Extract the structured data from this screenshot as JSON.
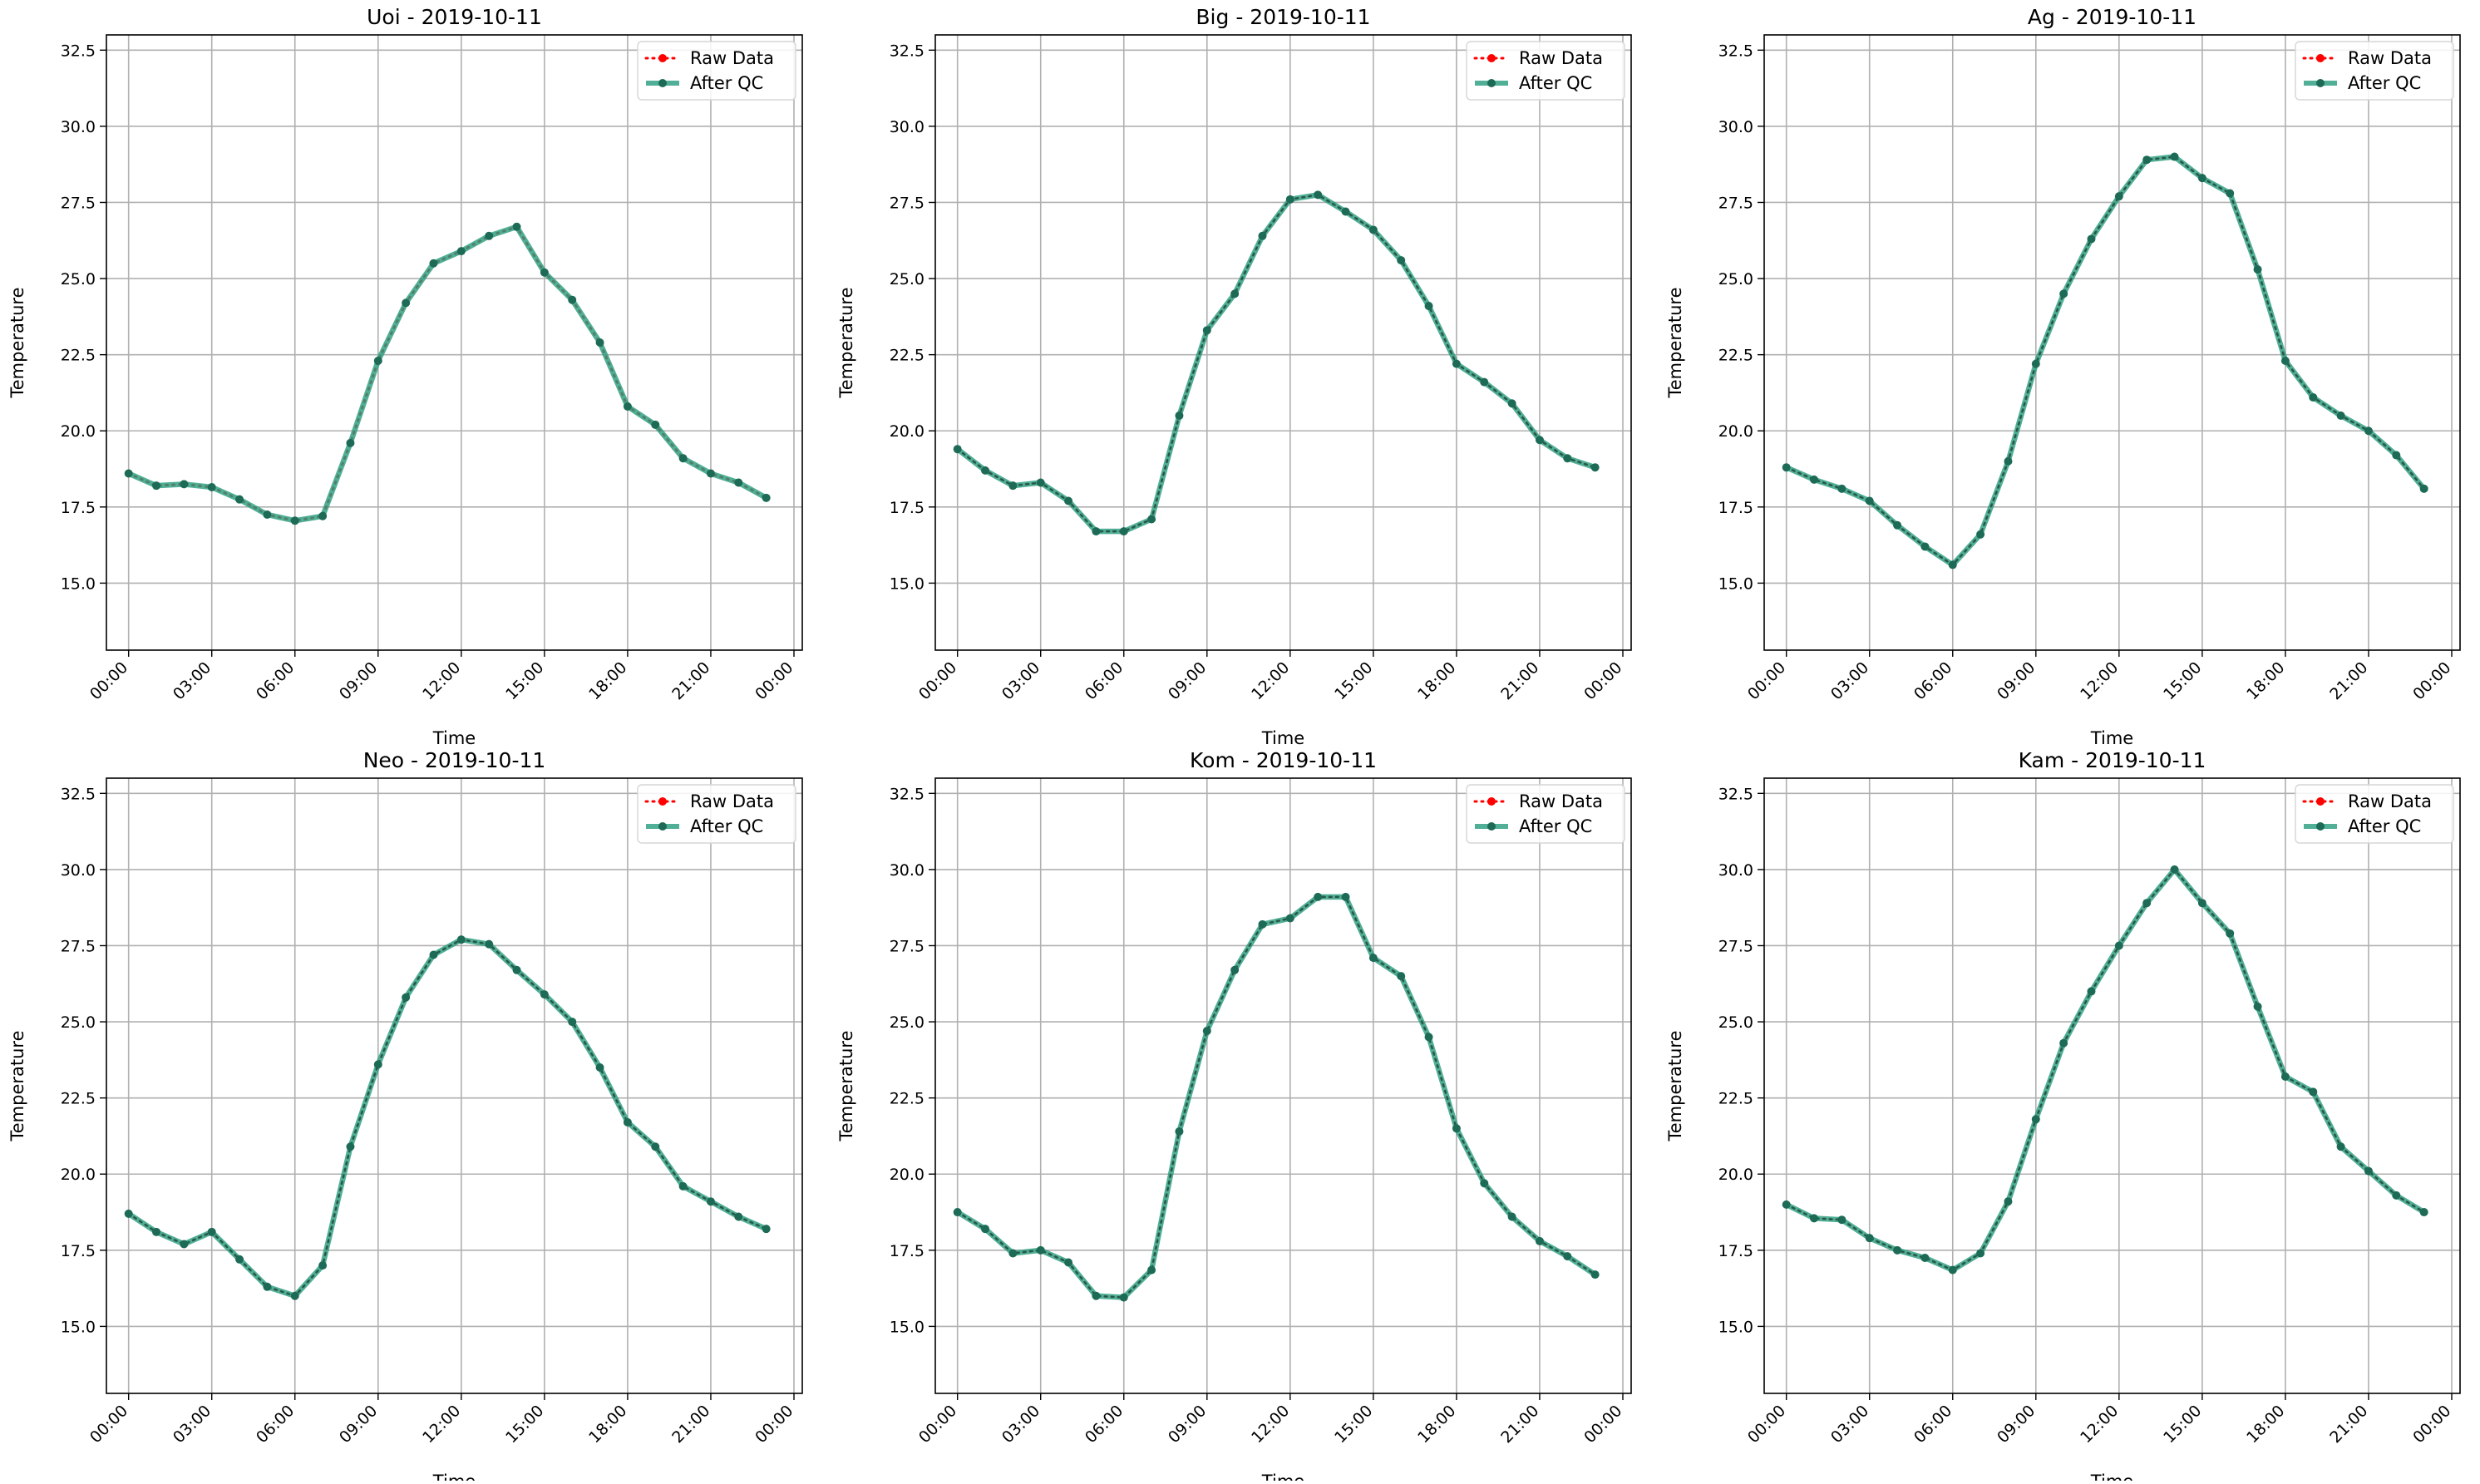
{
  "chart_data": [
    {
      "type": "line",
      "title": "Uoi - 2019-10-11",
      "xlabel": "Time",
      "ylabel": "Temperature",
      "ylim": [
        12.8,
        33.0
      ],
      "yticks": [
        "15.0",
        "17.5",
        "20.0",
        "22.5",
        "25.0",
        "27.5",
        "30.0",
        "32.5"
      ],
      "xticks": [
        "00:00",
        "03:00",
        "06:00",
        "09:00",
        "12:00",
        "15:00",
        "18:00",
        "21:00",
        "00:00"
      ],
      "x_hours": [
        0,
        1,
        2,
        3,
        4,
        5,
        6,
        7,
        8,
        9,
        10,
        11,
        12,
        13,
        14,
        15,
        16,
        17,
        18,
        19,
        20,
        21,
        22,
        23
      ],
      "grid": true,
      "legend": "top-right",
      "series": [
        {
          "name": "Raw Data",
          "values": [
            18.6,
            18.2,
            18.25,
            18.15,
            17.75,
            17.25,
            17.05,
            17.2,
            19.6,
            22.3,
            24.2,
            25.5,
            25.9,
            26.4,
            26.7,
            25.2,
            24.3,
            22.9,
            20.8,
            20.2,
            19.1,
            18.6,
            18.3,
            17.8
          ]
        },
        {
          "name": "After QC",
          "values": [
            18.6,
            18.2,
            18.25,
            18.15,
            17.75,
            17.25,
            17.05,
            17.2,
            19.6,
            22.3,
            24.2,
            25.5,
            25.9,
            26.4,
            26.7,
            25.2,
            24.3,
            22.9,
            20.8,
            20.2,
            19.1,
            18.6,
            18.3,
            17.8
          ]
        }
      ]
    },
    {
      "type": "line",
      "title": "Big - 2019-10-11",
      "xlabel": "Time",
      "ylabel": "Temperature",
      "ylim": [
        12.8,
        33.0
      ],
      "yticks": [
        "15.0",
        "17.5",
        "20.0",
        "22.5",
        "25.0",
        "27.5",
        "30.0",
        "32.5"
      ],
      "xticks": [
        "00:00",
        "03:00",
        "06:00",
        "09:00",
        "12:00",
        "15:00",
        "18:00",
        "21:00",
        "00:00"
      ],
      "x_hours": [
        0,
        1,
        2,
        3,
        4,
        5,
        6,
        7,
        8,
        9,
        10,
        11,
        12,
        13,
        14,
        15,
        16,
        17,
        18,
        19,
        20,
        21,
        22,
        23
      ],
      "grid": true,
      "legend": "top-right",
      "series": [
        {
          "name": "Raw Data",
          "values": [
            19.4,
            18.7,
            18.2,
            18.3,
            17.7,
            16.7,
            16.7,
            17.1,
            20.5,
            23.3,
            24.5,
            26.4,
            27.6,
            27.75,
            27.2,
            26.6,
            25.6,
            24.1,
            22.2,
            21.6,
            20.9,
            19.7,
            19.1,
            18.8
          ]
        },
        {
          "name": "After QC",
          "values": [
            19.4,
            18.7,
            18.2,
            18.3,
            17.7,
            16.7,
            16.7,
            17.1,
            20.5,
            23.3,
            24.5,
            26.4,
            27.6,
            27.75,
            27.2,
            26.6,
            25.6,
            24.1,
            22.2,
            21.6,
            20.9,
            19.7,
            19.1,
            18.8
          ]
        }
      ]
    },
    {
      "type": "line",
      "title": "Ag - 2019-10-11",
      "xlabel": "Time",
      "ylabel": "Temperature",
      "ylim": [
        12.8,
        33.0
      ],
      "yticks": [
        "15.0",
        "17.5",
        "20.0",
        "22.5",
        "25.0",
        "27.5",
        "30.0",
        "32.5"
      ],
      "xticks": [
        "00:00",
        "03:00",
        "06:00",
        "09:00",
        "12:00",
        "15:00",
        "18:00",
        "21:00",
        "00:00"
      ],
      "x_hours": [
        0,
        1,
        2,
        3,
        4,
        5,
        6,
        7,
        8,
        9,
        10,
        11,
        12,
        13,
        14,
        15,
        16,
        17,
        18,
        19,
        20,
        21,
        22,
        23
      ],
      "grid": true,
      "legend": "top-right",
      "series": [
        {
          "name": "Raw Data",
          "values": [
            18.8,
            18.4,
            18.1,
            17.7,
            16.9,
            16.2,
            15.6,
            16.6,
            19.0,
            22.2,
            24.5,
            26.3,
            27.7,
            28.9,
            29.0,
            28.3,
            27.8,
            25.3,
            22.3,
            21.1,
            20.5,
            20.0,
            19.2,
            18.1
          ]
        },
        {
          "name": "After QC",
          "values": [
            18.8,
            18.4,
            18.1,
            17.7,
            16.9,
            16.2,
            15.6,
            16.6,
            19.0,
            22.2,
            24.5,
            26.3,
            27.7,
            28.9,
            29.0,
            28.3,
            27.8,
            25.3,
            22.3,
            21.1,
            20.5,
            20.0,
            19.2,
            18.1
          ]
        }
      ]
    },
    {
      "type": "line",
      "title": "Neo - 2019-10-11",
      "xlabel": "Time",
      "ylabel": "Temperature",
      "ylim": [
        12.8,
        33.0
      ],
      "yticks": [
        "15.0",
        "17.5",
        "20.0",
        "22.5",
        "25.0",
        "27.5",
        "30.0",
        "32.5"
      ],
      "xticks": [
        "00:00",
        "03:00",
        "06:00",
        "09:00",
        "12:00",
        "15:00",
        "18:00",
        "21:00",
        "00:00"
      ],
      "x_hours": [
        0,
        1,
        2,
        3,
        4,
        5,
        6,
        7,
        8,
        9,
        10,
        11,
        12,
        13,
        14,
        15,
        16,
        17,
        18,
        19,
        20,
        21,
        22,
        23
      ],
      "grid": true,
      "legend": "top-right",
      "series": [
        {
          "name": "Raw Data",
          "values": [
            18.7,
            18.1,
            17.7,
            18.1,
            17.2,
            16.3,
            16.0,
            17.0,
            20.9,
            23.6,
            25.8,
            27.2,
            27.7,
            27.55,
            26.7,
            25.9,
            25.0,
            23.5,
            21.7,
            20.9,
            19.6,
            19.1,
            18.6,
            18.2
          ]
        },
        {
          "name": "After QC",
          "values": [
            18.7,
            18.1,
            17.7,
            18.1,
            17.2,
            16.3,
            16.0,
            17.0,
            20.9,
            23.6,
            25.8,
            27.2,
            27.7,
            27.55,
            26.7,
            25.9,
            25.0,
            23.5,
            21.7,
            20.9,
            19.6,
            19.1,
            18.6,
            18.2
          ]
        }
      ]
    },
    {
      "type": "line",
      "title": "Kom - 2019-10-11",
      "xlabel": "Time",
      "ylabel": "Temperature",
      "ylim": [
        12.8,
        33.0
      ],
      "yticks": [
        "15.0",
        "17.5",
        "20.0",
        "22.5",
        "25.0",
        "27.5",
        "30.0",
        "32.5"
      ],
      "xticks": [
        "00:00",
        "03:00",
        "06:00",
        "09:00",
        "12:00",
        "15:00",
        "18:00",
        "21:00",
        "00:00"
      ],
      "x_hours": [
        0,
        1,
        2,
        3,
        4,
        5,
        6,
        7,
        8,
        9,
        10,
        11,
        12,
        13,
        14,
        15,
        16,
        17,
        18,
        19,
        20,
        21,
        22,
        23
      ],
      "grid": true,
      "legend": "top-right",
      "series": [
        {
          "name": "Raw Data",
          "values": [
            18.75,
            18.2,
            17.4,
            17.5,
            17.1,
            16.0,
            15.95,
            16.85,
            21.4,
            24.7,
            26.7,
            28.2,
            28.4,
            29.1,
            29.1,
            27.1,
            26.5,
            24.5,
            21.5,
            19.7,
            18.6,
            17.8,
            17.3,
            16.7
          ]
        },
        {
          "name": "After QC",
          "values": [
            18.75,
            18.2,
            17.4,
            17.5,
            17.1,
            16.0,
            15.95,
            16.85,
            21.4,
            24.7,
            26.7,
            28.2,
            28.4,
            29.1,
            29.1,
            27.1,
            26.5,
            24.5,
            21.5,
            19.7,
            18.6,
            17.8,
            17.3,
            16.7
          ]
        }
      ]
    },
    {
      "type": "line",
      "title": "Kam - 2019-10-11",
      "xlabel": "Time",
      "ylabel": "Temperature",
      "ylim": [
        12.8,
        33.0
      ],
      "yticks": [
        "15.0",
        "17.5",
        "20.0",
        "22.5",
        "25.0",
        "27.5",
        "30.0",
        "32.5"
      ],
      "xticks": [
        "00:00",
        "03:00",
        "06:00",
        "09:00",
        "12:00",
        "15:00",
        "18:00",
        "21:00",
        "00:00"
      ],
      "x_hours": [
        0,
        1,
        2,
        3,
        4,
        5,
        6,
        7,
        8,
        9,
        10,
        11,
        12,
        13,
        14,
        15,
        16,
        17,
        18,
        19,
        20,
        21,
        22,
        23
      ],
      "grid": true,
      "legend": "top-right",
      "series": [
        {
          "name": "Raw Data",
          "values": [
            19.0,
            18.55,
            18.5,
            17.9,
            17.5,
            17.25,
            16.85,
            17.4,
            19.1,
            21.8,
            24.3,
            26.0,
            27.5,
            28.9,
            30.0,
            28.9,
            27.9,
            25.5,
            23.2,
            22.7,
            20.9,
            20.1,
            19.3,
            18.75
          ]
        },
        {
          "name": "After QC",
          "values": [
            19.0,
            18.55,
            18.5,
            17.9,
            17.5,
            17.25,
            16.85,
            17.4,
            19.1,
            21.8,
            24.3,
            26.0,
            27.5,
            28.9,
            30.0,
            28.9,
            27.9,
            25.5,
            23.2,
            22.7,
            20.9,
            20.1,
            19.3,
            18.75
          ]
        }
      ]
    }
  ],
  "style": {
    "raw_color": "#ff0000",
    "qc_color": "#2a9d7f",
    "qc_marker_color": "#1d6b56",
    "grid_color": "#b0b0b0"
  }
}
